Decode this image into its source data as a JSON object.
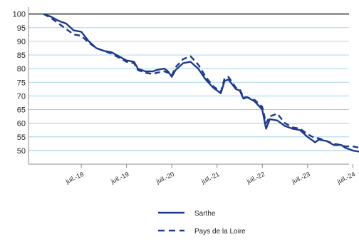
{
  "chart_data": {
    "type": "line",
    "title": "",
    "xlabel": "",
    "ylabel": "",
    "ylim": [
      45,
      102
    ],
    "yticks": [
      50,
      55,
      60,
      65,
      70,
      75,
      80,
      85,
      90,
      95,
      100
    ],
    "x_range": [
      "2017-05",
      "2024-06"
    ],
    "xticks": [
      {
        "date": "2018-07",
        "label": "juil.-18"
      },
      {
        "date": "2019-07",
        "label": "juil.-19"
      },
      {
        "date": "2020-07",
        "label": "juil.-20"
      },
      {
        "date": "2021-07",
        "label": "juil.-21"
      },
      {
        "date": "2022-07",
        "label": "juil.-22"
      },
      {
        "date": "2023-07",
        "label": "juil.-23"
      },
      {
        "date": "2024-07",
        "label": "juil.-24"
      }
    ],
    "grid": "horizontal",
    "legend_position": "bottom",
    "series": [
      {
        "name": "Sarthe",
        "style": "solid",
        "color": "#1f3a8a",
        "points": [
          [
            "2017-09",
            100
          ],
          [
            "2017-11",
            99
          ],
          [
            "2018-01",
            97.5
          ],
          [
            "2018-03",
            96.5
          ],
          [
            "2018-05",
            94
          ],
          [
            "2018-07",
            93.5
          ],
          [
            "2018-09",
            90
          ],
          [
            "2018-11",
            87.5
          ],
          [
            "2019-01",
            86.5
          ],
          [
            "2019-03",
            86
          ],
          [
            "2019-05",
            84.5
          ],
          [
            "2019-07",
            83
          ],
          [
            "2019-09",
            82.5
          ],
          [
            "2019-10",
            80
          ],
          [
            "2019-12",
            79
          ],
          [
            "2020-02",
            79
          ],
          [
            "2020-03",
            79.5
          ],
          [
            "2020-05",
            80
          ],
          [
            "2020-06",
            79
          ],
          [
            "2020-07",
            77
          ],
          [
            "2020-08",
            79.5
          ],
          [
            "2020-10",
            82
          ],
          [
            "2020-12",
            82.5
          ],
          [
            "2021-02",
            80
          ],
          [
            "2021-04",
            76
          ],
          [
            "2021-06",
            73
          ],
          [
            "2021-08",
            71
          ],
          [
            "2021-09",
            75.5
          ],
          [
            "2021-10",
            76
          ],
          [
            "2021-12",
            72.5
          ],
          [
            "2022-01",
            72
          ],
          [
            "2022-02",
            69
          ],
          [
            "2022-03",
            69.5
          ],
          [
            "2022-05",
            68
          ],
          [
            "2022-07",
            65
          ],
          [
            "2022-08",
            58
          ],
          [
            "2022-09",
            61.5
          ],
          [
            "2022-11",
            61
          ],
          [
            "2023-01",
            59
          ],
          [
            "2023-03",
            58
          ],
          [
            "2023-05",
            57.5
          ],
          [
            "2023-07",
            55
          ],
          [
            "2023-09",
            53
          ],
          [
            "2023-10",
            54
          ],
          [
            "2023-12",
            53.5
          ],
          [
            "2024-02",
            52
          ],
          [
            "2024-04",
            52
          ],
          [
            "2024-05",
            51
          ],
          [
            "2024-07",
            50
          ],
          [
            "2024-09",
            49.5
          ],
          [
            "2024-11",
            51
          ]
        ]
      },
      {
        "name": "Pays de la Loire",
        "style": "dashed",
        "color": "#1f3a8a",
        "points": [
          [
            "2017-09",
            100
          ],
          [
            "2017-11",
            98.5
          ],
          [
            "2018-01",
            96.5
          ],
          [
            "2018-03",
            94.5
          ],
          [
            "2018-05",
            92.5
          ],
          [
            "2018-07",
            92
          ],
          [
            "2018-09",
            89.5
          ],
          [
            "2018-11",
            87.5
          ],
          [
            "2019-01",
            86.5
          ],
          [
            "2019-03",
            85.5
          ],
          [
            "2019-05",
            84
          ],
          [
            "2019-07",
            82.5
          ],
          [
            "2019-09",
            82
          ],
          [
            "2019-10",
            79.5
          ],
          [
            "2019-12",
            78.5
          ],
          [
            "2020-02",
            78
          ],
          [
            "2020-03",
            78.5
          ],
          [
            "2020-05",
            79
          ],
          [
            "2020-06",
            78.5
          ],
          [
            "2020-07",
            77.5
          ],
          [
            "2020-08",
            80.5
          ],
          [
            "2020-10",
            83.5
          ],
          [
            "2020-12",
            84.5
          ],
          [
            "2021-02",
            81.5
          ],
          [
            "2021-04",
            77
          ],
          [
            "2021-06",
            73.5
          ],
          [
            "2021-08",
            71.5
          ],
          [
            "2021-09",
            76.5
          ],
          [
            "2021-10",
            77
          ],
          [
            "2021-12",
            73
          ],
          [
            "2022-01",
            72.5
          ],
          [
            "2022-02",
            69.5
          ],
          [
            "2022-03",
            69.5
          ],
          [
            "2022-05",
            68.5
          ],
          [
            "2022-07",
            66
          ],
          [
            "2022-08",
            60
          ],
          [
            "2022-09",
            62.5
          ],
          [
            "2022-11",
            63.5
          ],
          [
            "2023-01",
            60
          ],
          [
            "2023-03",
            58.5
          ],
          [
            "2023-05",
            58
          ],
          [
            "2023-07",
            56
          ],
          [
            "2023-09",
            54.5
          ],
          [
            "2023-10",
            54.5
          ],
          [
            "2023-12",
            53.5
          ],
          [
            "2024-02",
            52.5
          ],
          [
            "2024-04",
            52
          ],
          [
            "2024-05",
            51.5
          ],
          [
            "2024-07",
            51.5
          ],
          [
            "2024-09",
            51
          ],
          [
            "2024-11",
            51.5
          ]
        ]
      }
    ]
  }
}
